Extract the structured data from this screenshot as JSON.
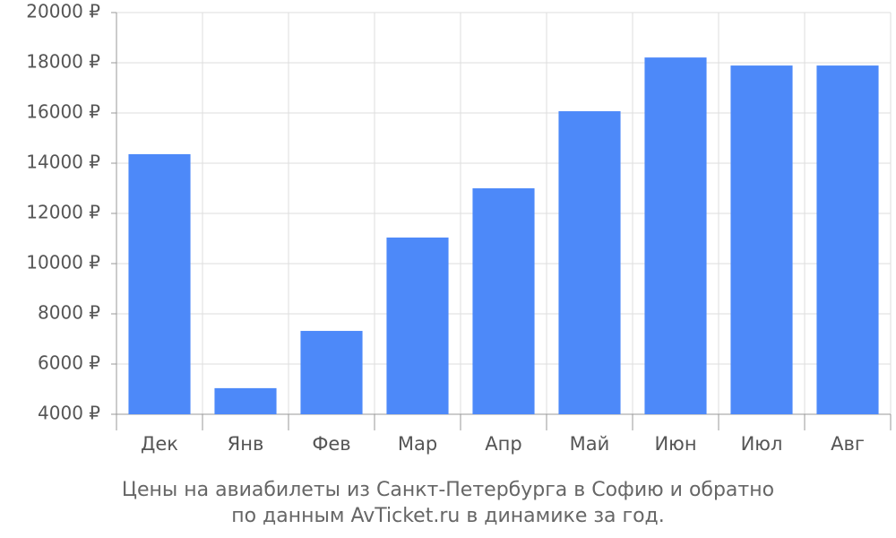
{
  "chart_data": {
    "type": "bar",
    "title": [
      "Цены на авиабилеты из Санкт-Петербурга в Софию и обратно",
      "по данным AvTicket.ru в динамике за год."
    ],
    "categories": [
      "Дек",
      "Янв",
      "Фев",
      "Мар",
      "Апр",
      "Май",
      "Июн",
      "Июл",
      "Авг"
    ],
    "values": [
      14360,
      5040,
      7320,
      11040,
      13000,
      16070,
      18210,
      17890,
      17890
    ],
    "color": "#4d89f9",
    "ylim": [
      4000,
      20000
    ],
    "yticks": [
      {
        "value": 4000,
        "label": "4000 ₽"
      },
      {
        "value": 6000,
        "label": "6000 ₽"
      },
      {
        "value": 8000,
        "label": "8000 ₽"
      },
      {
        "value": 10000,
        "label": "10000 ₽"
      },
      {
        "value": 12000,
        "label": "12000 ₽"
      },
      {
        "value": 14000,
        "label": "14000 ₽"
      },
      {
        "value": 16000,
        "label": "16000 ₽"
      },
      {
        "value": 18000,
        "label": "18000 ₽"
      },
      {
        "value": 20000,
        "label": "20000 ₽"
      }
    ],
    "grid": true
  }
}
